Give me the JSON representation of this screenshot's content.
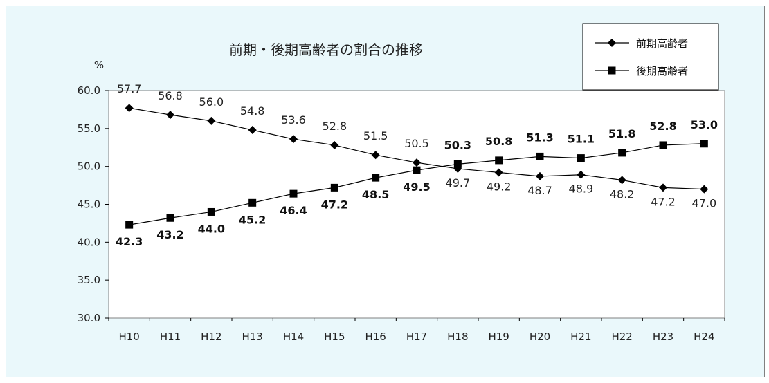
{
  "chart_data": {
    "type": "line",
    "title": "前期・後期高齢者の割合の推移",
    "ylabel": "%",
    "xlabel": "",
    "ylim": [
      30.0,
      60.0
    ],
    "yticks": [
      "60.0",
      "55.0",
      "50.0",
      "45.0",
      "40.0",
      "35.0",
      "30.0"
    ],
    "categories": [
      "H10",
      "H11",
      "H12",
      "H13",
      "H14",
      "H15",
      "H16",
      "H17",
      "H18",
      "H19",
      "H20",
      "H21",
      "H22",
      "H23",
      "H24"
    ],
    "series": [
      {
        "name": "前期高齢者",
        "marker": "diamond",
        "values": [
          57.7,
          56.8,
          56.0,
          54.8,
          53.6,
          52.8,
          51.5,
          50.5,
          49.7,
          49.2,
          48.7,
          48.9,
          48.2,
          47.2,
          47.0
        ],
        "labels": [
          "57.7",
          "56.8",
          "56.0",
          "54.8",
          "53.6",
          "52.8",
          "51.5",
          "50.5",
          "49.7",
          "49.2",
          "48.7",
          "48.9",
          "48.2",
          "47.2",
          "47.0"
        ]
      },
      {
        "name": "後期高齢者",
        "marker": "square",
        "values": [
          42.3,
          43.2,
          44.0,
          45.2,
          46.4,
          47.2,
          48.5,
          49.5,
          50.3,
          50.8,
          51.3,
          51.1,
          51.8,
          52.8,
          53.0
        ],
        "labels": [
          "42.3",
          "43.2",
          "44.0",
          "45.2",
          "46.4",
          "47.2",
          "48.5",
          "49.5",
          "50.3",
          "50.8",
          "51.3",
          "51.1",
          "51.8",
          "52.8",
          "53.0"
        ]
      }
    ],
    "legend": "top-right",
    "grid": false,
    "colors": {
      "plot_bg": "#ffffff",
      "chart_bg": "#eaf8fb",
      "line": "#000000"
    }
  }
}
